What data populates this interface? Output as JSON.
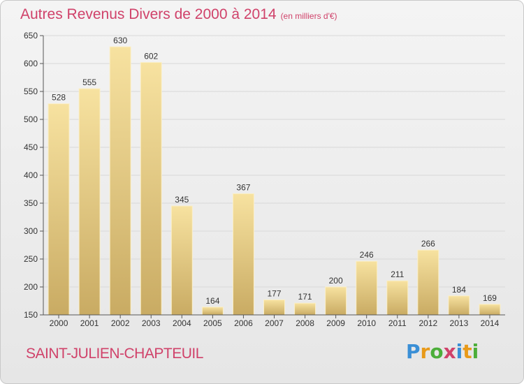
{
  "chart_data": {
    "type": "bar",
    "title": "Autres Revenus Divers de 2000 à 2014",
    "title_unit": "(en milliers d'€)",
    "categories": [
      "2000",
      "2001",
      "2002",
      "2003",
      "2004",
      "2005",
      "2006",
      "2007",
      "2008",
      "2009",
      "2010",
      "2011",
      "2012",
      "2013",
      "2014"
    ],
    "values": [
      528,
      555,
      630,
      602,
      345,
      164,
      367,
      177,
      171,
      200,
      246,
      211,
      266,
      184,
      169
    ],
    "ylim": [
      150,
      650
    ],
    "yticks": [
      150,
      200,
      250,
      300,
      350,
      400,
      450,
      500,
      550,
      600,
      650
    ],
    "grid": true,
    "colors": {
      "bar_top": "#f7e2a0",
      "bar_bottom": "#c9ab63",
      "text": "#333333",
      "axis": "#555555",
      "grid": "#d8d8d8"
    }
  },
  "footer": {
    "city": "SAINT-JULIEN-CHAPTEUIL",
    "logo_letters": [
      "P",
      "r",
      "o",
      "x",
      "i",
      "t",
      "i"
    ]
  }
}
